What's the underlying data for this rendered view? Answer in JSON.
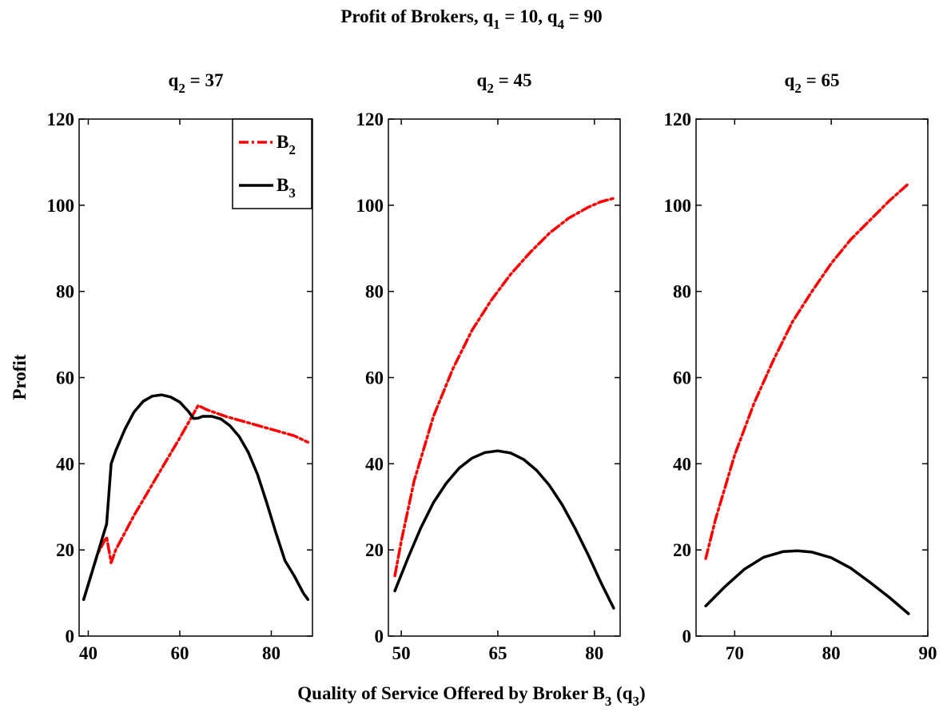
{
  "figure": {
    "title_prefix": "Profit of Brokers, q",
    "title_sub1": "1",
    "title_mid": " = 10, q",
    "title_sub2": "4",
    "title_suffix": " = 90",
    "xlabel_prefix": "Quality of Service Offered by Broker B",
    "xlabel_sub1": "3",
    "xlabel_mid": " (q",
    "xlabel_sub2": "3",
    "xlabel_suffix": ")",
    "ylabel": "Profit"
  },
  "colors": {
    "B2": "#ff0000",
    "B3": "#000000"
  },
  "legend": {
    "placement": "top-right of first panel",
    "entries": [
      {
        "label": "B",
        "sub": "2",
        "series": "B2",
        "style": "dash-dot"
      },
      {
        "label": "B",
        "sub": "3",
        "series": "B3",
        "style": "solid"
      }
    ]
  },
  "chart_data": [
    {
      "type": "line",
      "title_prefix": "q",
      "title_sub": "2",
      "title_suffix": " =  37",
      "xlim": [
        38,
        89
      ],
      "ylim": [
        0,
        120
      ],
      "xticks": [
        40,
        60,
        80
      ],
      "yticks": [
        0,
        20,
        40,
        60,
        80,
        100,
        120
      ],
      "grid": false,
      "series": [
        {
          "name": "B2",
          "x": [
            39,
            40,
            42,
            43,
            44,
            45,
            46,
            50,
            55,
            60,
            64,
            66,
            70,
            75,
            80,
            85,
            88
          ],
          "y": [
            8.5,
            12,
            19,
            21,
            23,
            17,
            20,
            28,
            37,
            46,
            53.5,
            52.5,
            51,
            49.5,
            48,
            46.5,
            45
          ]
        },
        {
          "name": "B3",
          "x": [
            39,
            42,
            44,
            45,
            46,
            48,
            50,
            52,
            54,
            56,
            58,
            60,
            62,
            63,
            64,
            65,
            67,
            69,
            71,
            73,
            75,
            77,
            79,
            81,
            83,
            85,
            87,
            88
          ],
          "y": [
            8.5,
            19,
            26,
            40,
            43,
            48,
            52,
            54.5,
            55.7,
            56,
            55.5,
            54.3,
            52,
            50.5,
            50.6,
            51,
            51,
            50.4,
            48.8,
            46.3,
            42.6,
            37.5,
            31,
            24,
            17.5,
            14,
            10,
            8.5
          ]
        }
      ]
    },
    {
      "type": "line",
      "title_prefix": "q",
      "title_sub": "2",
      "title_suffix": " =  45",
      "xlim": [
        48,
        84
      ],
      "ylim": [
        0,
        120
      ],
      "xticks": [
        50,
        65,
        80
      ],
      "yticks": [
        0,
        20,
        40,
        60,
        80,
        100,
        120
      ],
      "grid": false,
      "series": [
        {
          "name": "B2",
          "x": [
            49,
            50,
            52,
            55,
            58,
            61,
            64,
            67,
            70,
            73,
            76,
            79,
            81,
            83
          ],
          "y": [
            14,
            22,
            36,
            51,
            62,
            71,
            78,
            84,
            89,
            93.5,
            97,
            99.5,
            100.8,
            101.6
          ]
        },
        {
          "name": "B3",
          "x": [
            49,
            51,
            53,
            55,
            57,
            59,
            61,
            63,
            65,
            67,
            69,
            71,
            73,
            75,
            77,
            79,
            81,
            83
          ],
          "y": [
            10.5,
            18,
            25,
            31,
            35.5,
            39,
            41.3,
            42.6,
            43,
            42.5,
            41,
            38.5,
            35,
            30.5,
            25,
            19,
            12.5,
            6.5
          ]
        }
      ]
    },
    {
      "type": "line",
      "title_prefix": "q",
      "title_sub": "2",
      "title_suffix": " =  65",
      "xlim": [
        66,
        90
      ],
      "ylim": [
        0,
        120
      ],
      "xticks": [
        70,
        80,
        90
      ],
      "yticks": [
        0,
        20,
        40,
        60,
        80,
        100,
        120
      ],
      "grid": false,
      "series": [
        {
          "name": "B2",
          "x": [
            67,
            68,
            70,
            72,
            74,
            76,
            78,
            80,
            82,
            84,
            86,
            88
          ],
          "y": [
            18,
            27,
            42,
            54,
            64,
            73,
            80,
            86.5,
            92,
            96.5,
            101,
            105
          ]
        },
        {
          "name": "B3",
          "x": [
            67,
            69,
            71,
            73,
            75,
            76.5,
            78,
            80,
            82,
            84,
            86,
            88
          ],
          "y": [
            7,
            11.5,
            15.5,
            18.3,
            19.6,
            19.8,
            19.5,
            18.2,
            15.8,
            12.5,
            9,
            5.2
          ]
        }
      ]
    }
  ]
}
